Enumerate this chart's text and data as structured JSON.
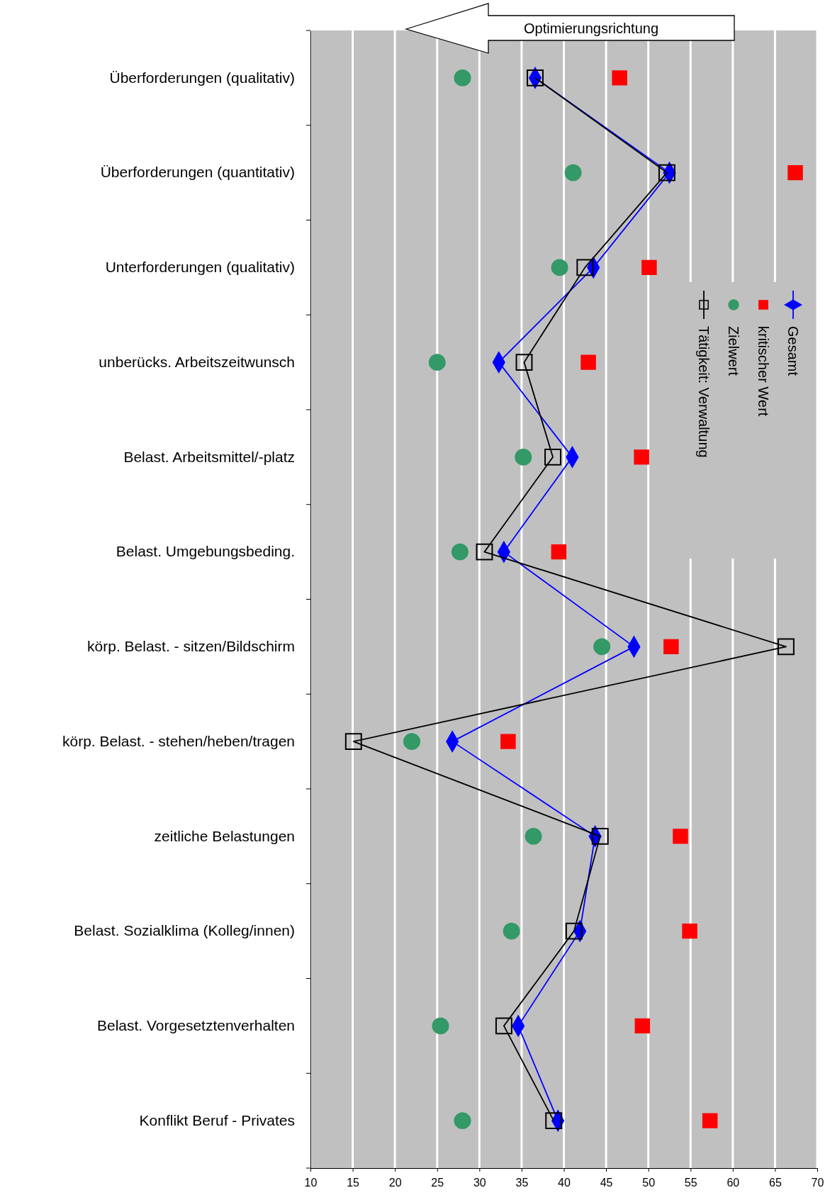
{
  "chart_data": {
    "type": "line",
    "orientation": "horizontal",
    "categories": [
      "Überforderungen (qualitativ)",
      "Überforderungen (quantitativ)",
      "Unterforderungen (qualitativ)",
      "unberücks. Arbeitszeitwunsch",
      "Belast. Arbeitsmittel/-platz",
      "Belast. Umgebungsbeding.",
      "körp. Belast. - sitzen/Bildschirm",
      "körp. Belast. - stehen/heben/tragen",
      "zeitliche Belastungen",
      "Belast. Sozialklima (Kolleg/innen)",
      "Belast. Vorgesetztenverhalten",
      "Konflikt Beruf - Privates"
    ],
    "xlim": [
      10,
      70
    ],
    "xticks": [
      10,
      15,
      20,
      25,
      30,
      35,
      40,
      45,
      50,
      55,
      60,
      65,
      70
    ],
    "grid": "x",
    "legend": "right",
    "annotations": [
      "Optimierungsrichtung"
    ],
    "series": [
      {
        "name": "Gesamt",
        "type": "line",
        "color": "#0000ff",
        "marker": "diamond",
        "values": [
          36.6,
          52.5,
          43.5,
          32.3,
          41.0,
          32.9,
          48.3,
          26.8,
          43.7,
          41.9,
          34.6,
          39.3
        ]
      },
      {
        "name": "kritischer Wert",
        "type": "scatter",
        "color": "#ff0000",
        "marker": "square",
        "values": [
          46.6,
          67.4,
          50.1,
          42.9,
          49.2,
          39.4,
          52.7,
          33.4,
          53.8,
          54.9,
          49.3,
          57.3
        ]
      },
      {
        "name": "Zielwert",
        "type": "scatter",
        "color": "#339966",
        "marker": "circle",
        "values": [
          28.0,
          41.1,
          39.5,
          25.0,
          35.2,
          27.7,
          44.5,
          22.0,
          36.4,
          33.8,
          25.4,
          28.0
        ]
      },
      {
        "name": "Tätigkeit: Verwaltung",
        "type": "line",
        "color": "#000000",
        "marker": "square",
        "values": [
          36.6,
          52.2,
          42.5,
          35.3,
          38.7,
          30.6,
          66.3,
          15.1,
          44.3,
          41.2,
          32.9,
          38.8
        ]
      }
    ]
  }
}
